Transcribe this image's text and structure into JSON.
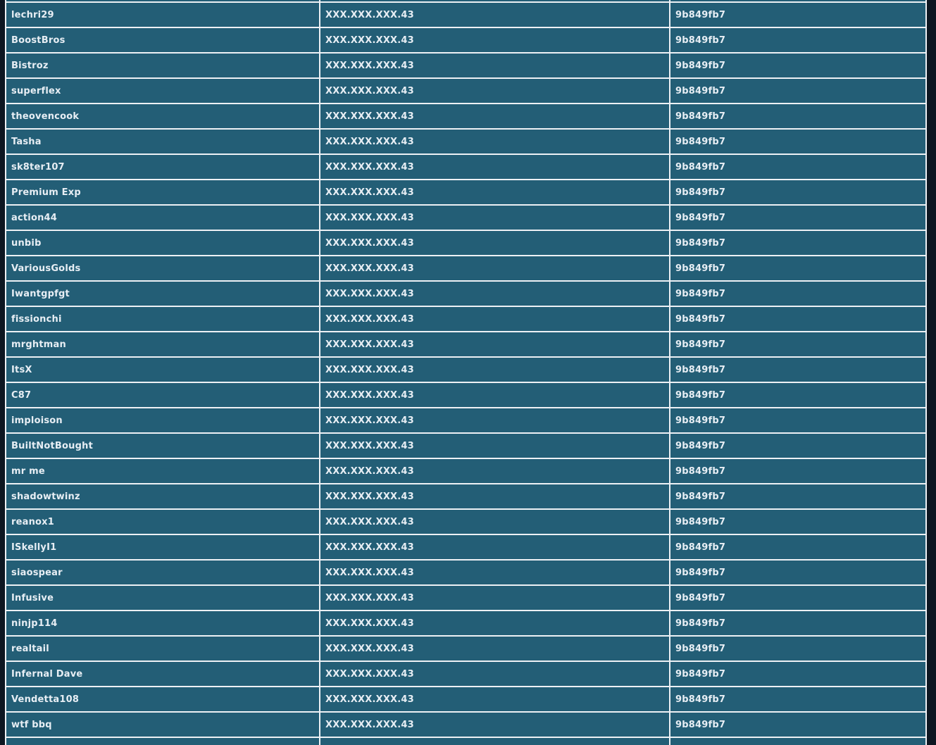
{
  "colors": {
    "page_background": "#0d1621",
    "cell_background": "#235e76",
    "cell_border": "#edf1f5",
    "text": "#e7eef4"
  },
  "table": {
    "shared_ip": "XXX.XXX.XXX.43",
    "shared_id": "9b849fb7",
    "rows": [
      {
        "user": "lechri29",
        "ip": "XXX.XXX.XXX.43",
        "id": "9b849fb7"
      },
      {
        "user": "BoostBros",
        "ip": "XXX.XXX.XXX.43",
        "id": "9b849fb7"
      },
      {
        "user": "Bistroz",
        "ip": "XXX.XXX.XXX.43",
        "id": "9b849fb7"
      },
      {
        "user": "superflex",
        "ip": "XXX.XXX.XXX.43",
        "id": "9b849fb7"
      },
      {
        "user": "theovencook",
        "ip": "XXX.XXX.XXX.43",
        "id": "9b849fb7"
      },
      {
        "user": "Tasha",
        "ip": "XXX.XXX.XXX.43",
        "id": "9b849fb7"
      },
      {
        "user": "sk8ter107",
        "ip": "XXX.XXX.XXX.43",
        "id": "9b849fb7"
      },
      {
        "user": "Premium Exp",
        "ip": "XXX.XXX.XXX.43",
        "id": "9b849fb7"
      },
      {
        "user": "action44",
        "ip": "XXX.XXX.XXX.43",
        "id": "9b849fb7"
      },
      {
        "user": "unbib",
        "ip": "XXX.XXX.XXX.43",
        "id": "9b849fb7"
      },
      {
        "user": "VariousGolds",
        "ip": "XXX.XXX.XXX.43",
        "id": "9b849fb7"
      },
      {
        "user": "Iwantgpfgt",
        "ip": "XXX.XXX.XXX.43",
        "id": "9b849fb7"
      },
      {
        "user": "fissionchi",
        "ip": "XXX.XXX.XXX.43",
        "id": "9b849fb7"
      },
      {
        "user": "mrghtman",
        "ip": "XXX.XXX.XXX.43",
        "id": "9b849fb7"
      },
      {
        "user": "ItsX",
        "ip": "XXX.XXX.XXX.43",
        "id": "9b849fb7"
      },
      {
        "user": "C87",
        "ip": "XXX.XXX.XXX.43",
        "id": "9b849fb7"
      },
      {
        "user": "imploison",
        "ip": "XXX.XXX.XXX.43",
        "id": "9b849fb7"
      },
      {
        "user": "BuiltNotBought",
        "ip": "XXX.XXX.XXX.43",
        "id": "9b849fb7"
      },
      {
        "user": "mr me",
        "ip": "XXX.XXX.XXX.43",
        "id": "9b849fb7"
      },
      {
        "user": "shadowtwinz",
        "ip": "XXX.XXX.XXX.43",
        "id": "9b849fb7"
      },
      {
        "user": "reanox1",
        "ip": "XXX.XXX.XXX.43",
        "id": "9b849fb7"
      },
      {
        "user": "ISkellyI1",
        "ip": "XXX.XXX.XXX.43",
        "id": "9b849fb7"
      },
      {
        "user": "siaospear",
        "ip": "XXX.XXX.XXX.43",
        "id": "9b849fb7"
      },
      {
        "user": "Infusive",
        "ip": "XXX.XXX.XXX.43",
        "id": "9b849fb7"
      },
      {
        "user": "ninjp114",
        "ip": "XXX.XXX.XXX.43",
        "id": "9b849fb7"
      },
      {
        "user": "realtail",
        "ip": "XXX.XXX.XXX.43",
        "id": "9b849fb7"
      },
      {
        "user": "Infernal Dave",
        "ip": "XXX.XXX.XXX.43",
        "id": "9b849fb7"
      },
      {
        "user": "Vendetta108",
        "ip": "XXX.XXX.XXX.43",
        "id": "9b849fb7"
      },
      {
        "user": "wtf bbq",
        "ip": "XXX.XXX.XXX.43",
        "id": "9b849fb7"
      }
    ]
  }
}
